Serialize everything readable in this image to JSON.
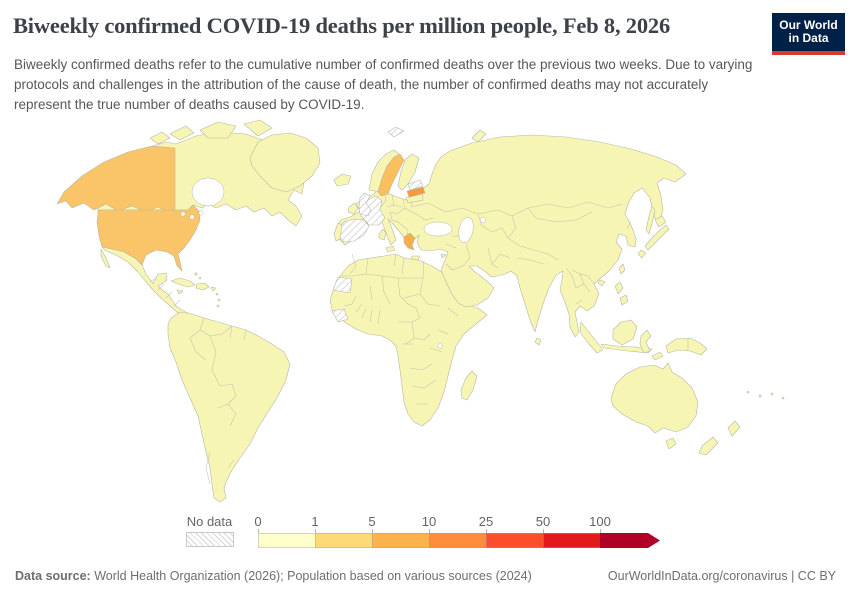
{
  "header": {
    "title": "Biweekly confirmed COVID-19 deaths per million people, Feb 8, 2026",
    "subtitle": "Biweekly confirmed deaths refer to the cumulative number of confirmed deaths over the previous two weeks. Due to varying protocols and challenges in the attribution of the cause of death, the number of confirmed deaths may not accurately represent the true number of deaths caused by COVID-19.",
    "logo": {
      "line1": "Our World",
      "line2": "in Data",
      "bg_color": "#002147",
      "stripe_color": "#d93a32"
    }
  },
  "legend": {
    "no_data_label": "No data",
    "tick_labels": [
      "0",
      "1",
      "5",
      "10",
      "25",
      "50",
      "100"
    ],
    "bin_colors": [
      "#ffffcc",
      "#fed976",
      "#feb24c",
      "#fd8d3c",
      "#fc4e2a",
      "#e31a1c",
      "#b10026"
    ]
  },
  "map": {
    "sea_color": "#ffffff",
    "default_fill": "#f7f5b3",
    "border_color": "#b7b7a8",
    "country_fills": {
      "united-states": "#fac468",
      "alaska": "#fac468",
      "sweden": "#fbbf5e",
      "latvia": "#f9993f",
      "greece": "#f8ad4d",
      "united-kingdom": "no-data",
      "france": "no-data",
      "spain": "no-data",
      "estonia": "no-data",
      "western-sahara": "no-data",
      "guinea": "no-data",
      "svalbard": "no-data"
    }
  },
  "chart_data": {
    "type": "choropleth",
    "title": "Biweekly confirmed COVID-19 deaths per million people",
    "date": "Feb 8, 2026",
    "unit": "deaths per million people",
    "bins": [
      "0-1",
      "1-5",
      "5-10",
      "10-25",
      "25-50",
      "50-100",
      "100+"
    ],
    "bin_colors": [
      "#ffffcc",
      "#fed976",
      "#feb24c",
      "#fd8d3c",
      "#fc4e2a",
      "#e31a1c",
      "#b10026"
    ],
    "values": {
      "United States": "1-5",
      "Sweden": "1-5",
      "Greece": "5-10",
      "Latvia": "10-25",
      "most other countries": "0-1"
    },
    "no_data": [
      "United Kingdom",
      "France",
      "Spain",
      "Estonia",
      "Western Sahara",
      "Guinea",
      "Svalbard"
    ],
    "legend_position": "bottom",
    "scale": "log-binned"
  },
  "footer": {
    "source_label": "Data source:",
    "source_text": " World Health Organization (2026); Population based on various sources (2024)",
    "license_text": "OurWorldInData.org/coronavirus | CC BY"
  }
}
